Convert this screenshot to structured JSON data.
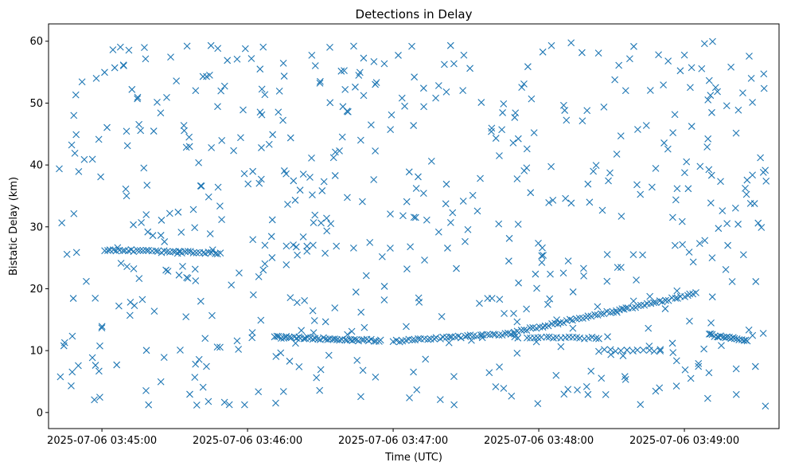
{
  "chart_data": {
    "type": "scatter",
    "title": "Detections in Delay",
    "xlabel": "Time (UTC)",
    "ylabel": "Bistatic Delay (km)",
    "x_tick_labels": [
      "2025-07-06 03:45:00",
      "2025-07-06 03:46:00",
      "2025-07-06 03:47:00",
      "2025-07-06 03:48:00",
      "2025-07-06 03:49:00"
    ],
    "x_tick_seconds": [
      0,
      60,
      120,
      180,
      240
    ],
    "xlim_seconds": [
      -22,
      279
    ],
    "y_ticks": [
      0,
      10,
      20,
      30,
      40,
      50,
      60
    ],
    "ylim": [
      -2.6,
      62.8
    ],
    "grid": false,
    "legend": "none",
    "marker": "x",
    "color": "#1f77b4",
    "x_start": "2025-07-06 03:44:42",
    "x_end": "2025-07-06 03:49:34",
    "tracks": [
      {
        "t_start": 1,
        "t_end": 49,
        "y_start": 26.3,
        "y_end": 25.7,
        "count": 40
      },
      {
        "t_start": 71,
        "t_end": 115,
        "y_start": 12.2,
        "y_end": 11.6,
        "count": 45
      },
      {
        "t_start": 120,
        "t_end": 170,
        "y_start": 11.5,
        "y_end": 12.8,
        "count": 40
      },
      {
        "t_start": 170,
        "t_end": 245,
        "y_start": 13.0,
        "y_end": 19.2,
        "count": 60
      },
      {
        "t_start": 250,
        "t_end": 266,
        "y_start": 12.6,
        "y_end": 11.6,
        "count": 20
      },
      {
        "t_start": 175,
        "t_end": 205,
        "y_start": 12.2,
        "y_end": 12.0,
        "count": 20
      },
      {
        "t_start": 205,
        "t_end": 230,
        "y_start": 10.0,
        "y_end": 10.0,
        "count": 12
      }
    ],
    "noise_count": 580,
    "noise_y_range": [
      1,
      60
    ]
  }
}
